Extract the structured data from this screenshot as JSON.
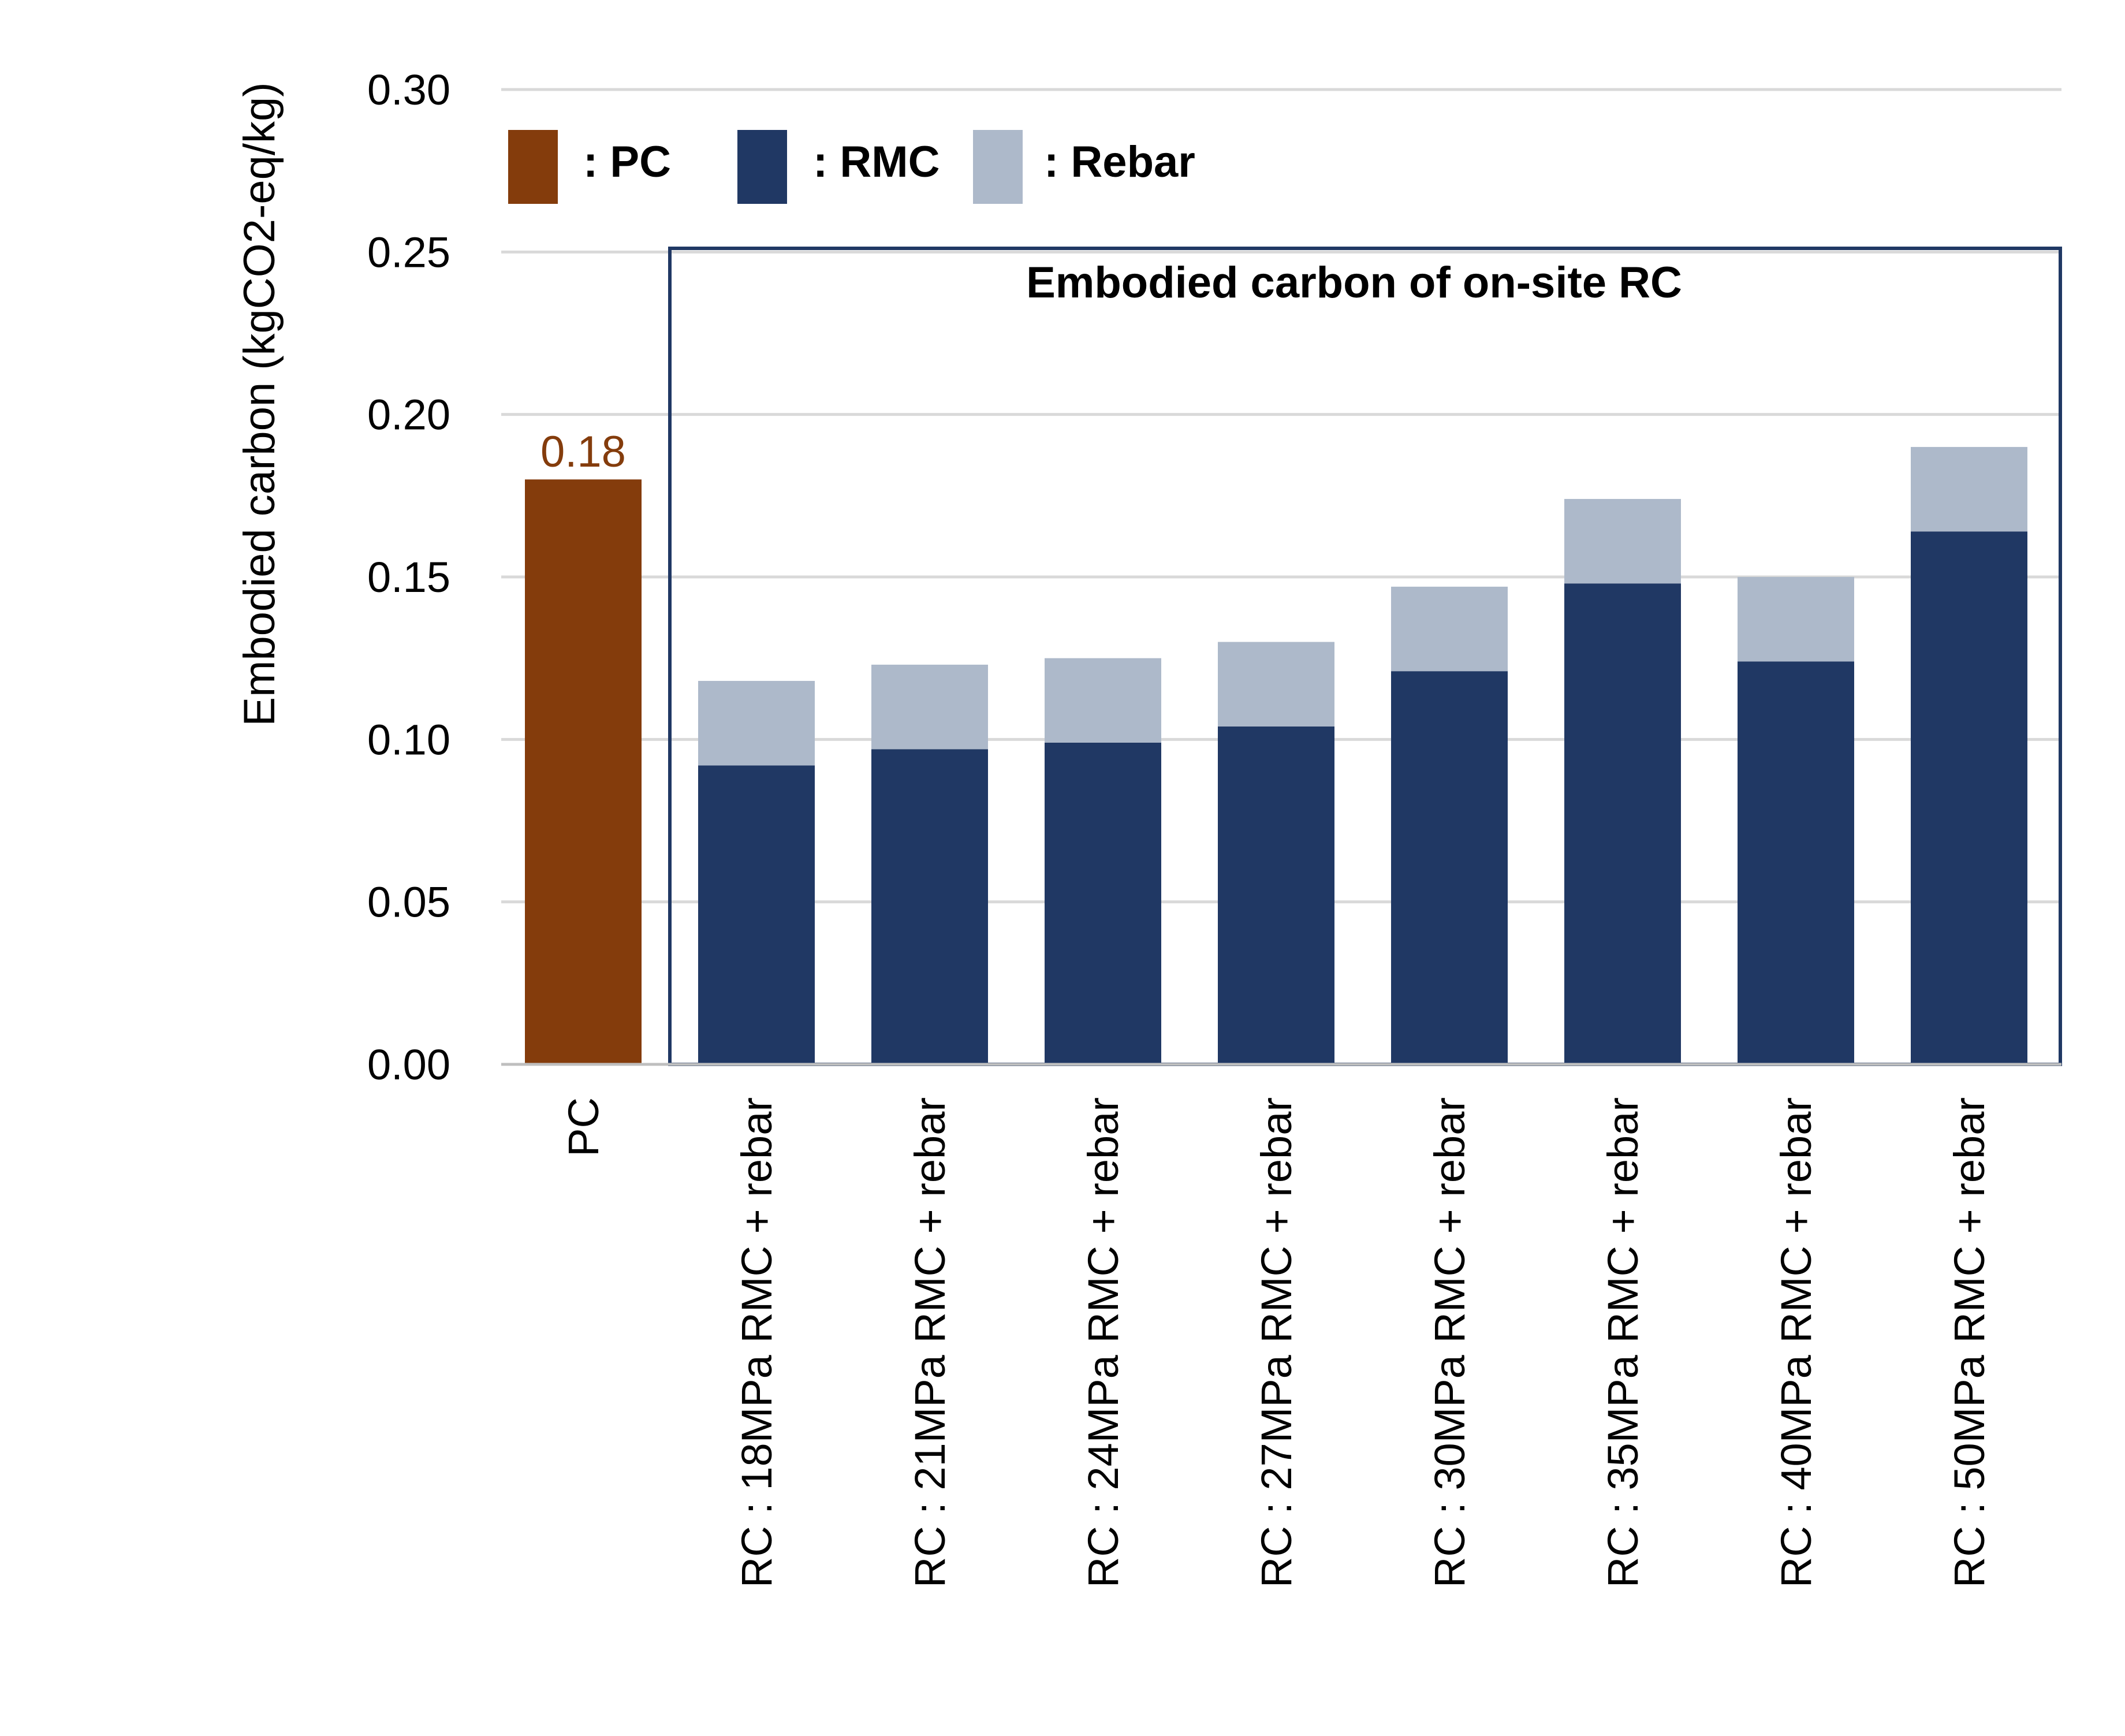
{
  "chart_data": {
    "type": "bar",
    "stacked": true,
    "ylabel": "Embodied carbon (kgCO2-eq/kg)",
    "xlabel": "",
    "ylim": [
      0,
      0.3
    ],
    "yticks": [
      "0.00",
      "0.05",
      "0.10",
      "0.15",
      "0.20",
      "0.25",
      "0.30"
    ],
    "grid": true,
    "legend_position": "top-left",
    "categories": [
      "PC",
      "RC : 18MPa RMC + rebar",
      "RC : 21MPa RMC + rebar",
      "RC : 24MPa RMC + rebar",
      "RC : 27MPa RMC + rebar",
      "RC : 30MPa RMC + rebar",
      "RC : 35MPa RMC + rebar",
      "RC : 40MPa RMC + rebar",
      "RC : 50MPa RMC + rebar"
    ],
    "series": [
      {
        "name": ": PC",
        "color": "#843C0C",
        "values": [
          0.18,
          0,
          0,
          0,
          0,
          0,
          0,
          0,
          0
        ]
      },
      {
        "name": ": RMC",
        "color": "#203864",
        "values": [
          0,
          0.092,
          0.097,
          0.099,
          0.104,
          0.121,
          0.148,
          0.124,
          0.164
        ]
      },
      {
        "name": ": Rebar",
        "color": "#ADB9CA",
        "values": [
          0,
          0.026,
          0.026,
          0.026,
          0.026,
          0.026,
          0.026,
          0.026,
          0.026
        ]
      }
    ],
    "data_labels": [
      {
        "category": "PC",
        "text": "0.18",
        "color": "#843C0C"
      }
    ],
    "annotation": {
      "title": "Embodied carbon of on-site RC",
      "from_category": 1,
      "to_category": 8,
      "border_color": "#203864"
    },
    "gridline_color": "#D9D9D9",
    "axis_color": "#BFBFBF"
  }
}
